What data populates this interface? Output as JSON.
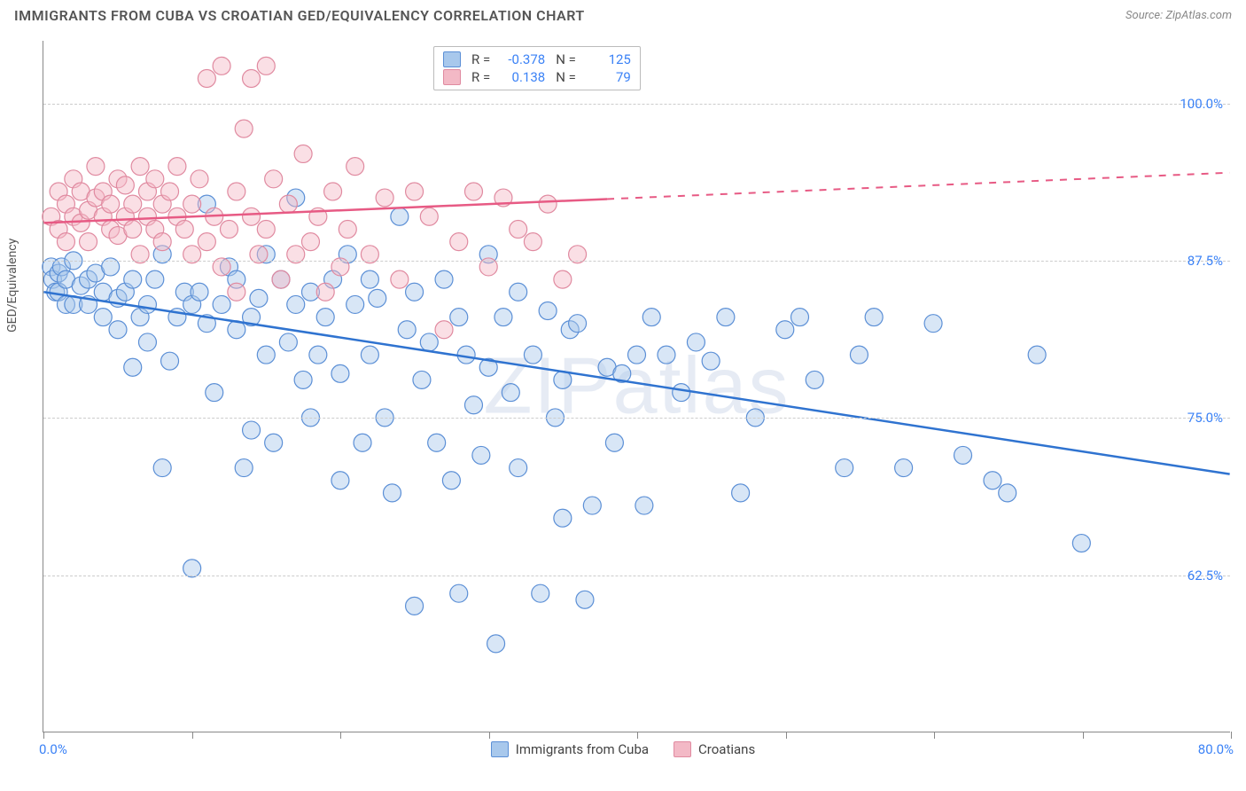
{
  "title": "IMMIGRANTS FROM CUBA VS CROATIAN GED/EQUIVALENCY CORRELATION CHART",
  "source_prefix": "Source: ",
  "source": "ZipAtlas.com",
  "watermark": "ZIPatlas",
  "y_axis_title": "GED/Equivalency",
  "chart": {
    "type": "scatter",
    "xlim": [
      0,
      80
    ],
    "ylim": [
      50,
      105
    ],
    "x_tick_positions": [
      0,
      10,
      20,
      30,
      40,
      50,
      60,
      70,
      80
    ],
    "x_tick_labels_shown": {
      "0": "0.0%",
      "80": "80.0%"
    },
    "y_gridlines": [
      62.5,
      75.0,
      87.5,
      100.0
    ],
    "y_tick_labels": [
      "62.5%",
      "75.0%",
      "87.5%",
      "100.0%"
    ],
    "background_color": "#ffffff",
    "grid_color": "#cccccc",
    "axis_color": "#888888",
    "tick_label_color": "#3b82f6",
    "marker_radius": 10,
    "marker_opacity": 0.45,
    "marker_stroke_width": 1.2,
    "line_width": 2.5,
    "series": [
      {
        "name": "Immigrants from Cuba",
        "color_fill": "#a8c8ec",
        "color_stroke": "#5b8fd6",
        "R": "-0.378",
        "N": "125",
        "trend": {
          "x1": 0,
          "y1": 85.0,
          "x2": 80,
          "y2": 70.5,
          "solid_until_x": 80,
          "color": "#2f73d0"
        },
        "points": [
          [
            0.5,
            87
          ],
          [
            0.6,
            86
          ],
          [
            0.8,
            85
          ],
          [
            1,
            86.5
          ],
          [
            1,
            85
          ],
          [
            1.2,
            87
          ],
          [
            1.5,
            84
          ],
          [
            1.5,
            86
          ],
          [
            2,
            87.5
          ],
          [
            2,
            84
          ],
          [
            2.5,
            85.5
          ],
          [
            3,
            84
          ],
          [
            3,
            86
          ],
          [
            3.5,
            86.5
          ],
          [
            4,
            83
          ],
          [
            4,
            85
          ],
          [
            4.5,
            87
          ],
          [
            5,
            84.5
          ],
          [
            5,
            82
          ],
          [
            5.5,
            85
          ],
          [
            6,
            86
          ],
          [
            6,
            79
          ],
          [
            6.5,
            83
          ],
          [
            7,
            84
          ],
          [
            7,
            81
          ],
          [
            7.5,
            86
          ],
          [
            8,
            88
          ],
          [
            8,
            71
          ],
          [
            8.5,
            79.5
          ],
          [
            9,
            83
          ],
          [
            9.5,
            85
          ],
          [
            10,
            84
          ],
          [
            10,
            63
          ],
          [
            10.5,
            85
          ],
          [
            11,
            82.5
          ],
          [
            11,
            92
          ],
          [
            11.5,
            77
          ],
          [
            12,
            84
          ],
          [
            12.5,
            87
          ],
          [
            13,
            82
          ],
          [
            13,
            86
          ],
          [
            13.5,
            71
          ],
          [
            14,
            74
          ],
          [
            14,
            83
          ],
          [
            14.5,
            84.5
          ],
          [
            15,
            88
          ],
          [
            15,
            80
          ],
          [
            15.5,
            73
          ],
          [
            16,
            86
          ],
          [
            16.5,
            81
          ],
          [
            17,
            84
          ],
          [
            17,
            92.5
          ],
          [
            17.5,
            78
          ],
          [
            18,
            85
          ],
          [
            18,
            75
          ],
          [
            18.5,
            80
          ],
          [
            19,
            83
          ],
          [
            19.5,
            86
          ],
          [
            20,
            78.5
          ],
          [
            20,
            70
          ],
          [
            20.5,
            88
          ],
          [
            21,
            84
          ],
          [
            21.5,
            73
          ],
          [
            22,
            80
          ],
          [
            22,
            86
          ],
          [
            22.5,
            84.5
          ],
          [
            23,
            75
          ],
          [
            23.5,
            69
          ],
          [
            24,
            91
          ],
          [
            24.5,
            82
          ],
          [
            25,
            85
          ],
          [
            25,
            60
          ],
          [
            25.5,
            78
          ],
          [
            26,
            81
          ],
          [
            26.5,
            73
          ],
          [
            27,
            86
          ],
          [
            27.5,
            70
          ],
          [
            28,
            83
          ],
          [
            28,
            61
          ],
          [
            28.5,
            80
          ],
          [
            29,
            76
          ],
          [
            29.5,
            72
          ],
          [
            30,
            88
          ],
          [
            30,
            79
          ],
          [
            30.5,
            57
          ],
          [
            31,
            83
          ],
          [
            31.5,
            77
          ],
          [
            32,
            85
          ],
          [
            32,
            71
          ],
          [
            33,
            80
          ],
          [
            33.5,
            61
          ],
          [
            34,
            83.5
          ],
          [
            34.5,
            75
          ],
          [
            35,
            67
          ],
          [
            35,
            78
          ],
          [
            35.5,
            82
          ],
          [
            36,
            82.5
          ],
          [
            36.5,
            60.5
          ],
          [
            37,
            68
          ],
          [
            38,
            79
          ],
          [
            38.5,
            73
          ],
          [
            39,
            78.5
          ],
          [
            40,
            80
          ],
          [
            40.5,
            68
          ],
          [
            41,
            83
          ],
          [
            42,
            80
          ],
          [
            43,
            77
          ],
          [
            44,
            81
          ],
          [
            45,
            79.5
          ],
          [
            46,
            83
          ],
          [
            47,
            69
          ],
          [
            48,
            75
          ],
          [
            50,
            82
          ],
          [
            51,
            83
          ],
          [
            52,
            78
          ],
          [
            54,
            71
          ],
          [
            55,
            80
          ],
          [
            56,
            83
          ],
          [
            58,
            71
          ],
          [
            60,
            82.5
          ],
          [
            62,
            72
          ],
          [
            64,
            70
          ],
          [
            65,
            69
          ],
          [
            67,
            80
          ],
          [
            70,
            65
          ]
        ]
      },
      {
        "name": "Croatians",
        "color_fill": "#f3b9c6",
        "color_stroke": "#e08aa0",
        "R": "0.138",
        "N": "79",
        "trend": {
          "x1": 0,
          "y1": 90.5,
          "x2": 80,
          "y2": 94.5,
          "solid_until_x": 38,
          "color": "#e75a84"
        },
        "points": [
          [
            0.5,
            91
          ],
          [
            1,
            93
          ],
          [
            1,
            90
          ],
          [
            1.5,
            92
          ],
          [
            1.5,
            89
          ],
          [
            2,
            94
          ],
          [
            2,
            91
          ],
          [
            2.5,
            90.5
          ],
          [
            2.5,
            93
          ],
          [
            3,
            91.5
          ],
          [
            3,
            89
          ],
          [
            3.5,
            92.5
          ],
          [
            3.5,
            95
          ],
          [
            4,
            91
          ],
          [
            4,
            93
          ],
          [
            4.5,
            90
          ],
          [
            4.5,
            92
          ],
          [
            5,
            94
          ],
          [
            5,
            89.5
          ],
          [
            5.5,
            91
          ],
          [
            5.5,
            93.5
          ],
          [
            6,
            90
          ],
          [
            6,
            92
          ],
          [
            6.5,
            95
          ],
          [
            6.5,
            88
          ],
          [
            7,
            93
          ],
          [
            7,
            91
          ],
          [
            7.5,
            90
          ],
          [
            7.5,
            94
          ],
          [
            8,
            92
          ],
          [
            8,
            89
          ],
          [
            8.5,
            93
          ],
          [
            9,
            91
          ],
          [
            9,
            95
          ],
          [
            9.5,
            90
          ],
          [
            10,
            92
          ],
          [
            10,
            88
          ],
          [
            10.5,
            94
          ],
          [
            11,
            102
          ],
          [
            11,
            89
          ],
          [
            11.5,
            91
          ],
          [
            12,
            103
          ],
          [
            12,
            87
          ],
          [
            12.5,
            90
          ],
          [
            13,
            93
          ],
          [
            13,
            85
          ],
          [
            13.5,
            98
          ],
          [
            14,
            91
          ],
          [
            14,
            102
          ],
          [
            14.5,
            88
          ],
          [
            15,
            90
          ],
          [
            15,
            103
          ],
          [
            15.5,
            94
          ],
          [
            16,
            86
          ],
          [
            16.5,
            92
          ],
          [
            17,
            88
          ],
          [
            17.5,
            96
          ],
          [
            18,
            89
          ],
          [
            18.5,
            91
          ],
          [
            19,
            85
          ],
          [
            19.5,
            93
          ],
          [
            20,
            87
          ],
          [
            20.5,
            90
          ],
          [
            21,
            95
          ],
          [
            22,
            88
          ],
          [
            23,
            92.5
          ],
          [
            24,
            86
          ],
          [
            25,
            93
          ],
          [
            26,
            91
          ],
          [
            27,
            82
          ],
          [
            28,
            89
          ],
          [
            29,
            93
          ],
          [
            30,
            87
          ],
          [
            31,
            92.5
          ],
          [
            32,
            90
          ],
          [
            33,
            89
          ],
          [
            34,
            92
          ],
          [
            35,
            86
          ],
          [
            36,
            88
          ]
        ]
      }
    ]
  },
  "stats_labels": {
    "R": "R =",
    "N": "N ="
  },
  "bottom_legend": [
    "Immigrants from Cuba",
    "Croatians"
  ]
}
